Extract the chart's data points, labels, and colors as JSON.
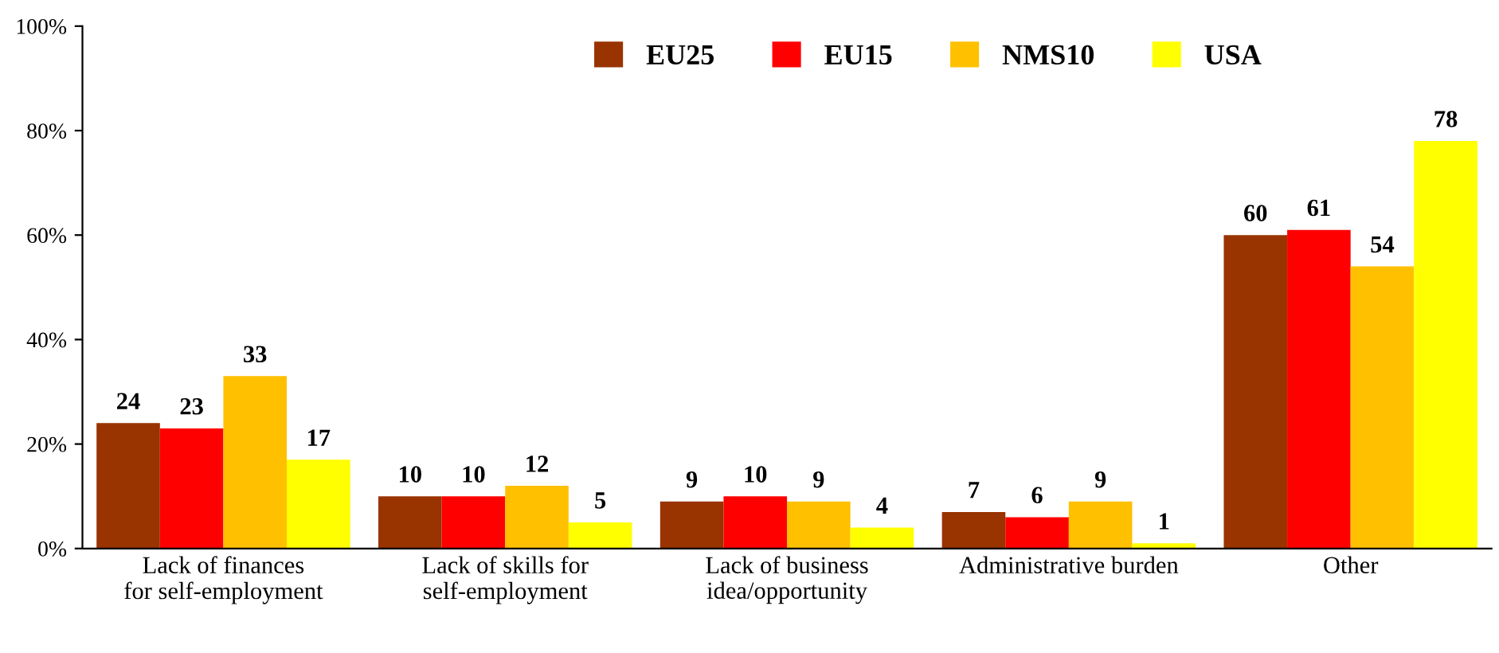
{
  "chart_data": {
    "type": "bar",
    "categories": [
      "Lack of finances for self-employment",
      "Lack of skills for self-employment",
      "Lack of business idea/opportunity",
      "Administrative burden",
      "Other"
    ],
    "series": [
      {
        "name": "EU25",
        "color": "#993300",
        "values": [
          24,
          10,
          9,
          7,
          60
        ]
      },
      {
        "name": "EU15",
        "color": "#ff0000",
        "values": [
          23,
          10,
          10,
          6,
          61
        ]
      },
      {
        "name": "NMS10",
        "color": "#ffc000",
        "values": [
          33,
          12,
          9,
          9,
          54
        ]
      },
      {
        "name": "USA",
        "color": "#ffff00",
        "values": [
          17,
          5,
          4,
          1,
          78
        ]
      }
    ],
    "ylim": [
      0,
      100
    ],
    "yticks": [
      {
        "value": 0,
        "label": "0%"
      },
      {
        "value": 20,
        "label": "20%"
      },
      {
        "value": 40,
        "label": "40%"
      },
      {
        "value": 60,
        "label": "60%"
      },
      {
        "value": 80,
        "label": "80%"
      },
      {
        "value": 100,
        "label": "100%"
      }
    ],
    "data_labels": true,
    "legend": "top",
    "grid": false
  }
}
